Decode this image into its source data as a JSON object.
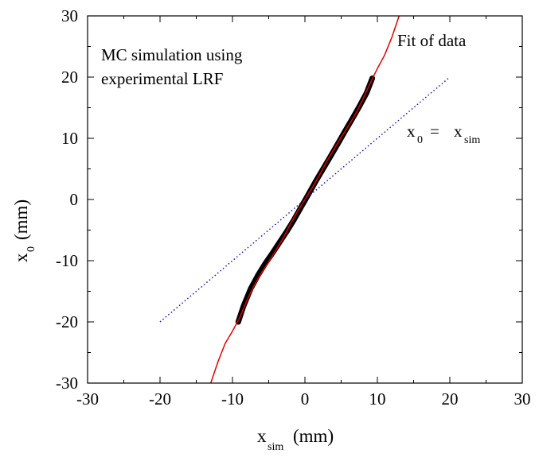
{
  "chart_data": {
    "type": "scatter",
    "xlabel": {
      "main": "x",
      "sub": "sim",
      "unit": "(mm)"
    },
    "ylabel": {
      "main": "x",
      "sub": "0",
      "unit": "(mm)"
    },
    "xlim": [
      -30,
      30
    ],
    "ylim": [
      -30,
      30
    ],
    "xticks": [
      -30,
      -20,
      -10,
      0,
      10,
      20,
      30
    ],
    "yticks": [
      -30,
      -20,
      -10,
      0,
      10,
      20,
      30
    ],
    "x_tick_labels": [
      "-30",
      "-20",
      "-10",
      "0",
      "10",
      "20",
      "30"
    ],
    "y_tick_labels": [
      "-30",
      "-20",
      "-10",
      "0",
      "10",
      "20",
      "30"
    ],
    "grid": false,
    "annotations": {
      "sim_line1": "MC simulation using",
      "sim_line2": "experimental LRF",
      "fit": "Fit of data",
      "identity": {
        "lhs": "x",
        "lhs_sub": "0",
        "eq": "=",
        "rhs": "x",
        "rhs_sub": "sim"
      }
    },
    "series": [
      {
        "style": "black points",
        "color": "#000000",
        "x": [
          -9.2,
          -8.5,
          -7.5,
          -6.5,
          -5.5,
          -4.5,
          -3.5,
          -2.5,
          -1.5,
          -0.5,
          0.5,
          1.5,
          2.5,
          3.5,
          4.5,
          5.5,
          6.5,
          7.5,
          8.5,
          9.3
        ],
        "y": [
          -20,
          -17.5,
          -14.6,
          -12.4,
          -10.5,
          -8.8,
          -7.0,
          -5.2,
          -3.3,
          -1.2,
          0.9,
          3.0,
          5.0,
          7.0,
          9.0,
          11.1,
          13.1,
          15.2,
          17.4,
          19.8
        ]
      },
      {
        "style": "red line (fit of data)",
        "color": "#e00000",
        "x": [
          -13,
          -12,
          -11,
          -10,
          -9,
          -8,
          -7,
          -6,
          -5,
          -4,
          -3,
          -2,
          -1,
          0,
          1,
          2,
          3,
          4,
          5,
          6,
          7,
          8,
          9,
          10,
          11,
          12,
          13
        ],
        "y": [
          -30,
          -26.5,
          -23.5,
          -21.5,
          -19.3,
          -16.5,
          -14.0,
          -12.0,
          -10.2,
          -8.3,
          -6.3,
          -4.0,
          -1.9,
          0,
          1.9,
          4.0,
          6.2,
          8.2,
          10.2,
          12.0,
          14.0,
          16.4,
          19.0,
          21.4,
          23.6,
          26.5,
          30
        ]
      },
      {
        "style": "blue dotted line (x0 = xsim)",
        "color": "#1a1aa8",
        "x": [
          -20,
          20
        ],
        "y": [
          -20,
          20
        ]
      }
    ]
  }
}
